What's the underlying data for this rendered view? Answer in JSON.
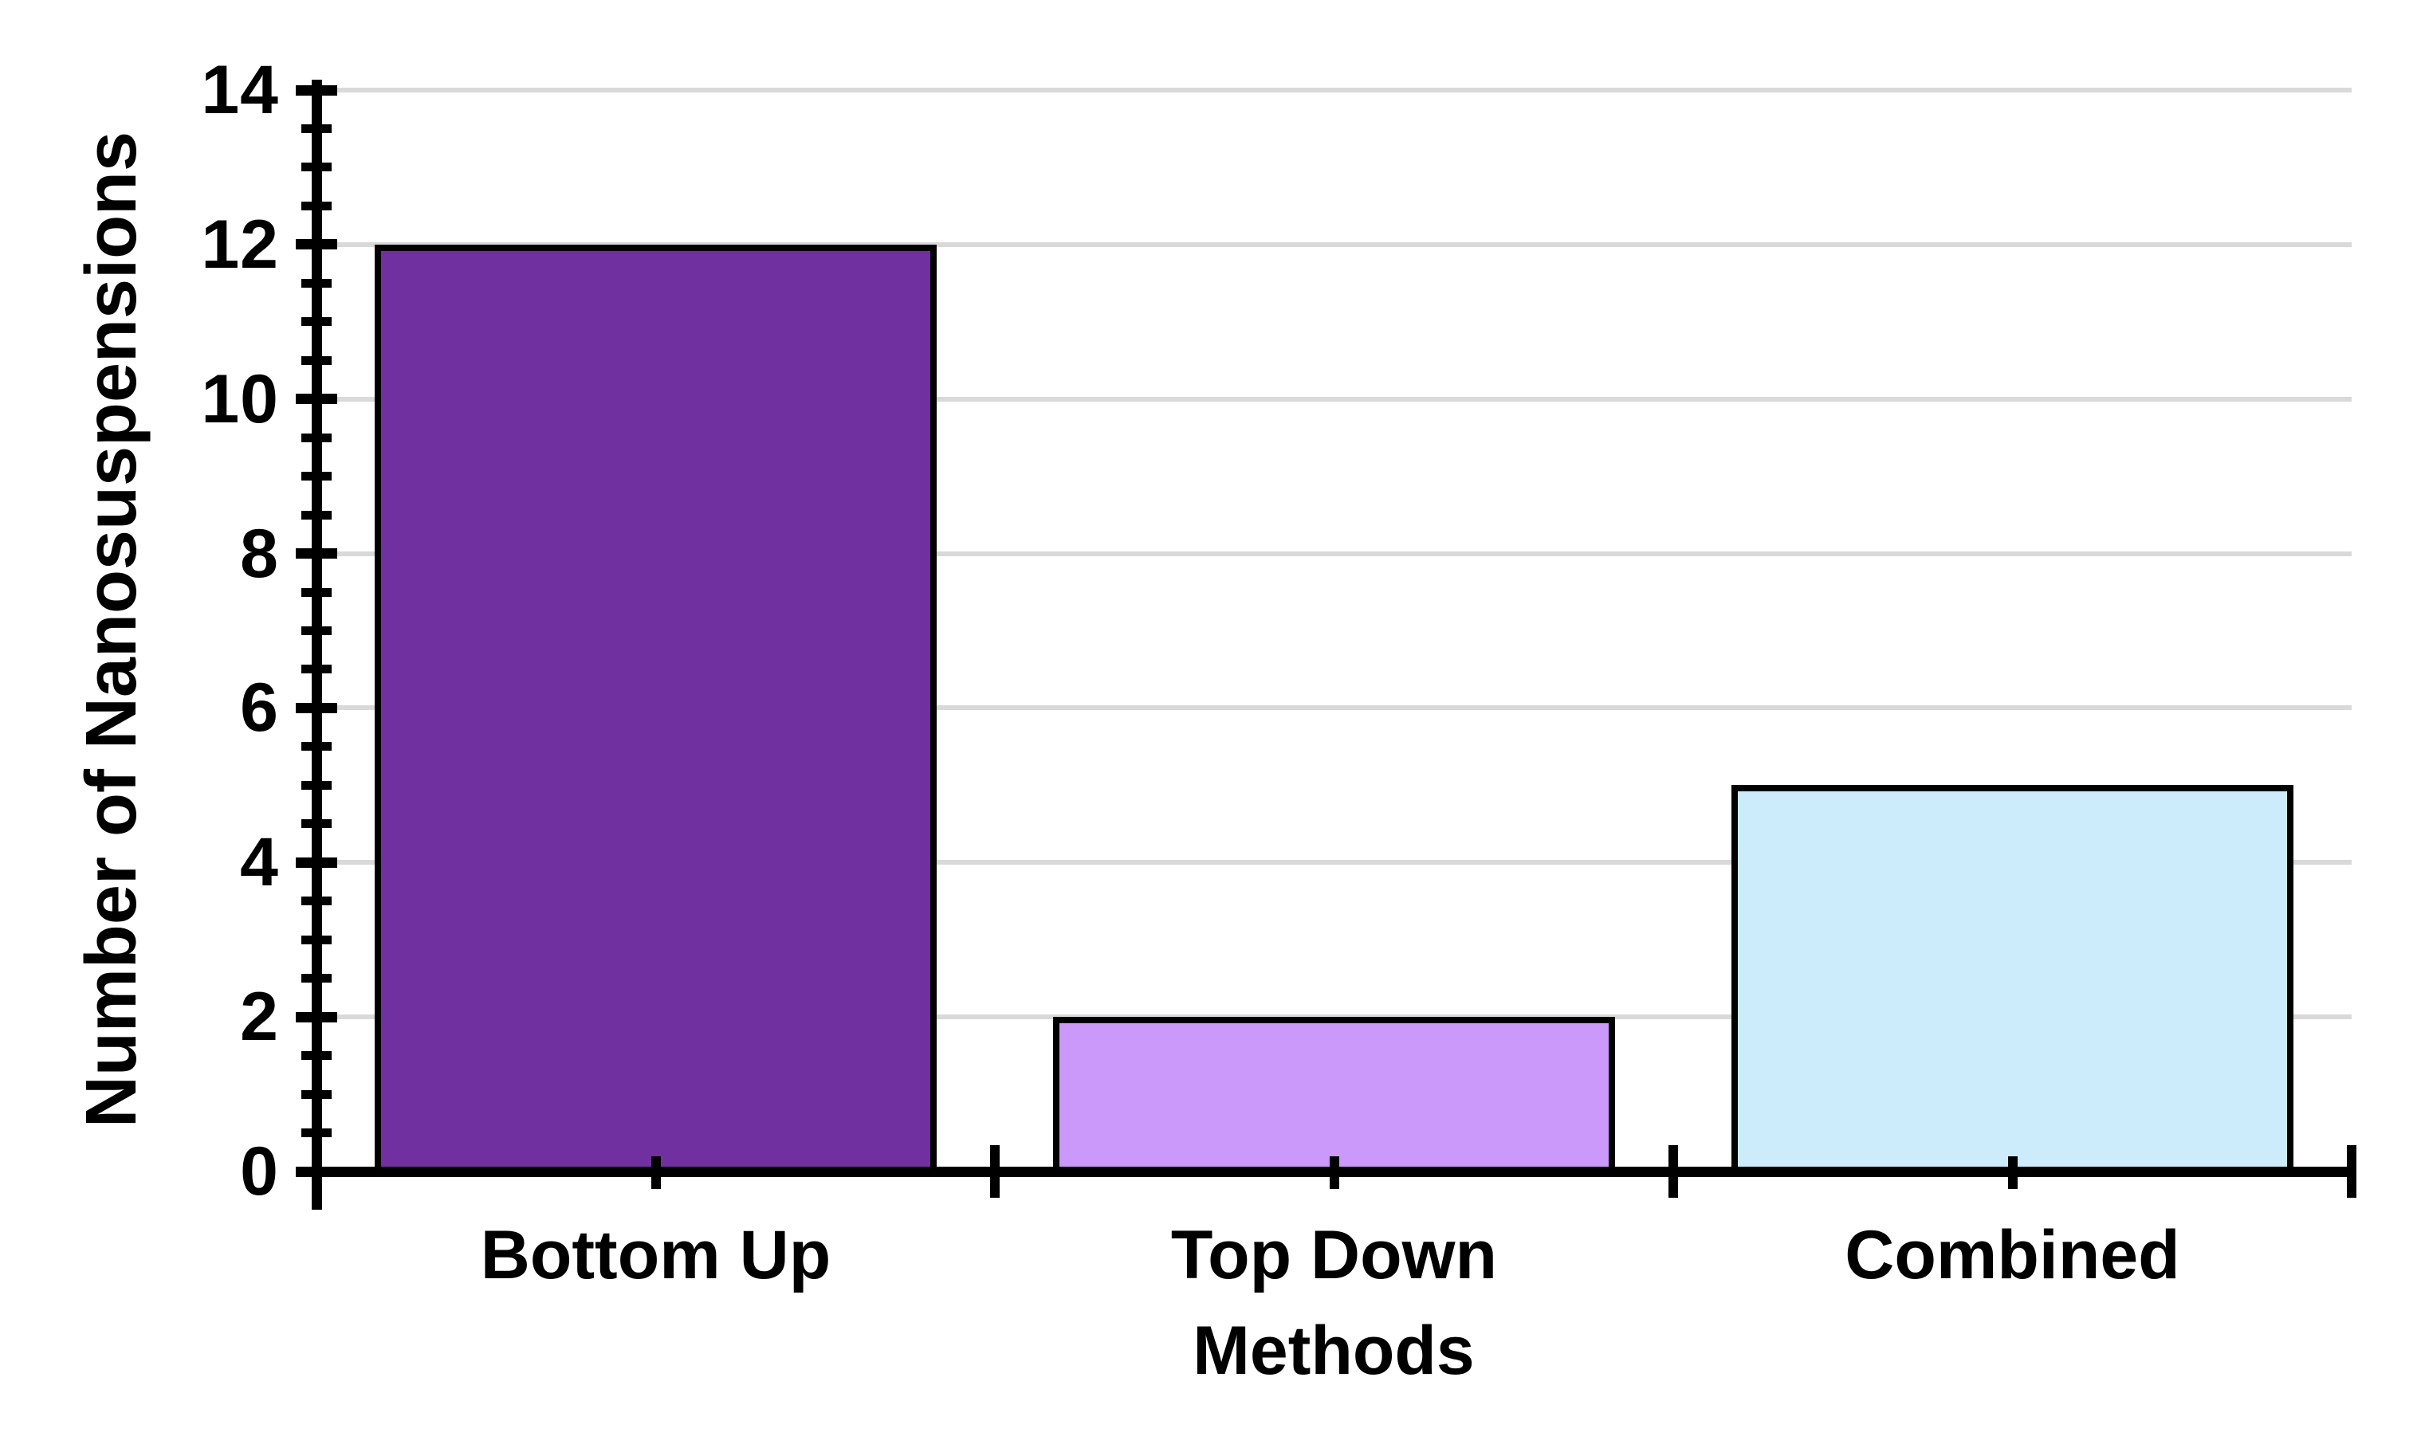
{
  "chart_data": {
    "type": "bar",
    "title": "",
    "categories": [
      "Bottom Up",
      "Top Down",
      "Combined"
    ],
    "values": [
      12,
      2,
      5
    ],
    "series_colors": [
      "#7030A0",
      "#CB99F9",
      "#CCEBFB"
    ],
    "bar_border_color": "#000000",
    "xlabel": "Methods",
    "ylabel": "Number of Nanosuspensions",
    "ylim": [
      0,
      14
    ],
    "yticks": [
      0,
      2,
      4,
      6,
      8,
      10,
      12,
      14
    ],
    "ytick_labels": [
      "0",
      "2",
      "4",
      "6",
      "8",
      "10",
      "12",
      "14"
    ],
    "ytick_step": 2,
    "yminor_step": 0.5,
    "grid": "horizontal-major",
    "gridline_color": "#D9D9D9",
    "axis_color": "#000000",
    "text_color": "#000000",
    "legend": "none",
    "background": "#FFFFFF"
  }
}
